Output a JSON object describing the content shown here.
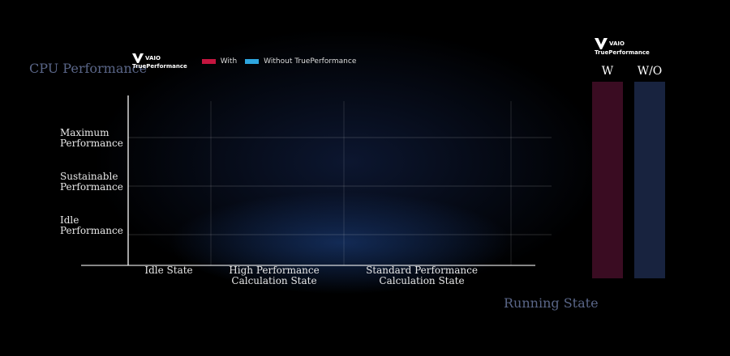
{
  "colors": {
    "with": "#c4153f",
    "without": "#2ea6e0",
    "bar_with": "#3a0c22",
    "bar_without": "#18233f",
    "axis_title": "#5a6688"
  },
  "logo": {
    "brand": "VAIO",
    "product": "TruePerformance",
    "icon": "vaio-logo-icon"
  },
  "legend": {
    "with": "With",
    "without": "Without TruePerformance"
  },
  "chart_data": {
    "type": "line",
    "title": "",
    "ylabel": "CPU Performance",
    "xlabel": "Running State",
    "y_ticks": [
      {
        "label_line1": "Maximum",
        "label_line2": "Performance"
      },
      {
        "label_line1": "Sustainable",
        "label_line2": "Performance"
      },
      {
        "label_line1": "Idle",
        "label_line2": "Performance"
      }
    ],
    "x_categories": [
      {
        "label_line1": "Idle State",
        "label_line2": ""
      },
      {
        "label_line1": "High Performance",
        "label_line2": "Calculation State"
      },
      {
        "label_line1": "Standard Performance",
        "label_line2": "Calculation State"
      }
    ],
    "series": [
      {
        "name": "With",
        "values": []
      },
      {
        "name": "Without TruePerformance",
        "values": []
      }
    ],
    "grid": true,
    "legend_position": "top-left"
  },
  "side_bars": {
    "with_label": "W",
    "without_label": "W/O"
  }
}
